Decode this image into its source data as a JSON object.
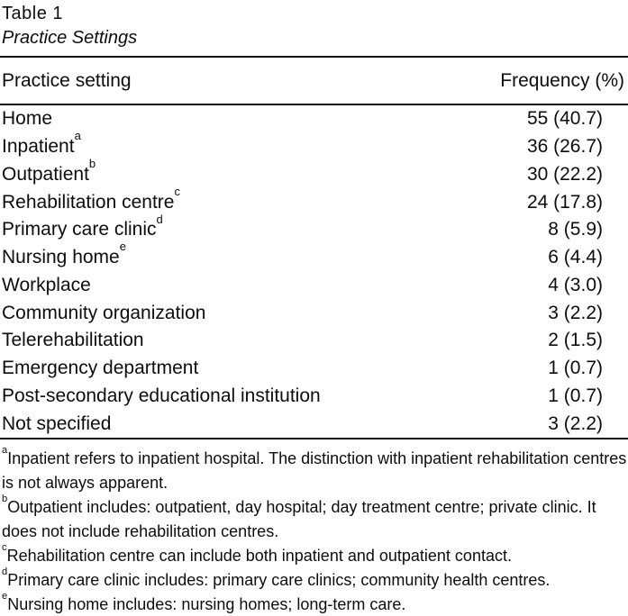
{
  "page": {
    "background_color": "#ffffff",
    "text_color": "#0d0d0d"
  },
  "table": {
    "label": "Table 1",
    "caption": "Practice Settings",
    "columns": {
      "setting": "Practice setting",
      "frequency": "Frequency (%)"
    },
    "rows": [
      {
        "setting": "Home",
        "sup": "",
        "frequency": "55 (40.7)"
      },
      {
        "setting": "Inpatient",
        "sup": "a",
        "frequency": "36 (26.7)"
      },
      {
        "setting": "Outpatient",
        "sup": "b",
        "frequency": "30 (22.2)"
      },
      {
        "setting": "Rehabilitation centre",
        "sup": "c",
        "frequency": "24 (17.8)"
      },
      {
        "setting": "Primary care clinic",
        "sup": "d",
        "frequency": "8 (5.9)"
      },
      {
        "setting": "Nursing home",
        "sup": "e",
        "frequency": "6 (4.4)"
      },
      {
        "setting": "Workplace",
        "sup": "",
        "frequency": "4 (3.0)"
      },
      {
        "setting": "Community organization",
        "sup": "",
        "frequency": "3 (2.2)"
      },
      {
        "setting": "Telerehabilitation",
        "sup": "",
        "frequency": "2 (1.5)"
      },
      {
        "setting": "Emergency department",
        "sup": "",
        "frequency": "1 (0.7)"
      },
      {
        "setting": "Post-secondary educational institution",
        "sup": "",
        "frequency": "1 (0.7)"
      },
      {
        "setting": "Not specified",
        "sup": "",
        "frequency": "3 (2.2)"
      }
    ],
    "footnotes": [
      {
        "marker": "a",
        "text": "Inpatient refers to inpatient hospital. The distinction with inpatient rehabilitation centres is not always apparent."
      },
      {
        "marker": "b",
        "text": "Outpatient includes: outpatient, day hospital; day treatment centre; private clinic. It does not include rehabilitation centres."
      },
      {
        "marker": "c",
        "text": "Rehabilitation centre can include both inpatient and outpatient contact."
      },
      {
        "marker": "d",
        "text": "Primary care clinic includes: primary care clinics; community health centres."
      },
      {
        "marker": "e",
        "text": "Nursing home includes: nursing homes; long-term care."
      }
    ]
  }
}
